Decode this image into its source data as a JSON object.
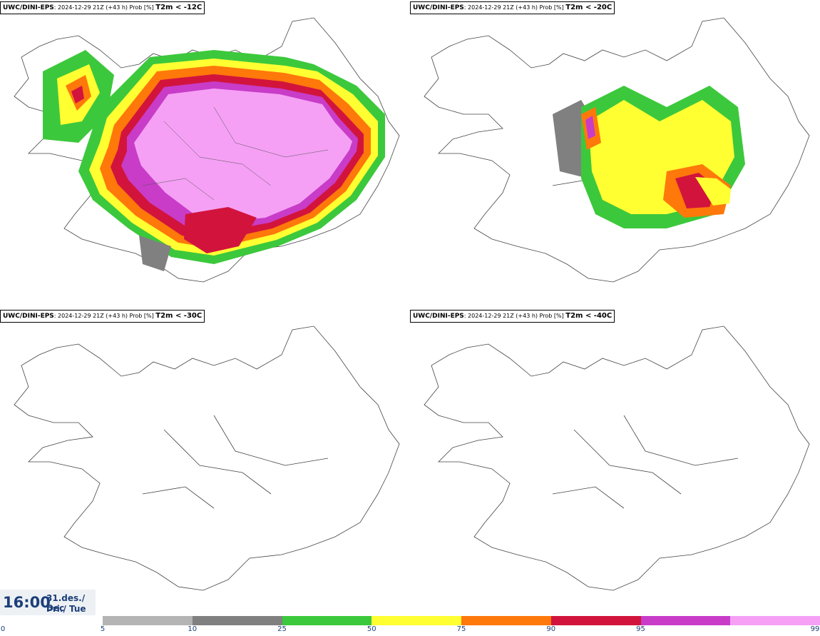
{
  "panels": [
    {
      "model": "UWC/DINI-EPS",
      "info": ": 2024-12-29 21Z (+43 h) Prob [%]",
      "variable": "T2m < -12C"
    },
    {
      "model": "UWC/DINI-EPS",
      "info": ": 2024-12-29 21Z (+43 h) Prob [%]",
      "variable": "T2m < -20C"
    },
    {
      "model": "UWC/DINI-EPS",
      "info": ": 2024-12-29 21Z (+43 h) Prob [%]",
      "variable": "T2m < -30C"
    },
    {
      "model": "UWC/DINI-EPS",
      "info": ": 2024-12-29 21Z (+43 h) Prob [%]",
      "variable": "T2m < -40C"
    }
  ],
  "time": {
    "hour": "16:00",
    "date_line1": "31.des./ Dec",
    "date_line2": "Þri./ Tue"
  },
  "colorbar": {
    "ticks": [
      "0",
      "5",
      "10",
      "25",
      "50",
      "75",
      "90",
      "95",
      "99"
    ],
    "colors": [
      "#b4b4b4",
      "#808080",
      "#3cc83c",
      "#ffff32",
      "#ff780a",
      "#d2143c",
      "#c83cc8",
      "#f5a0f5"
    ]
  }
}
